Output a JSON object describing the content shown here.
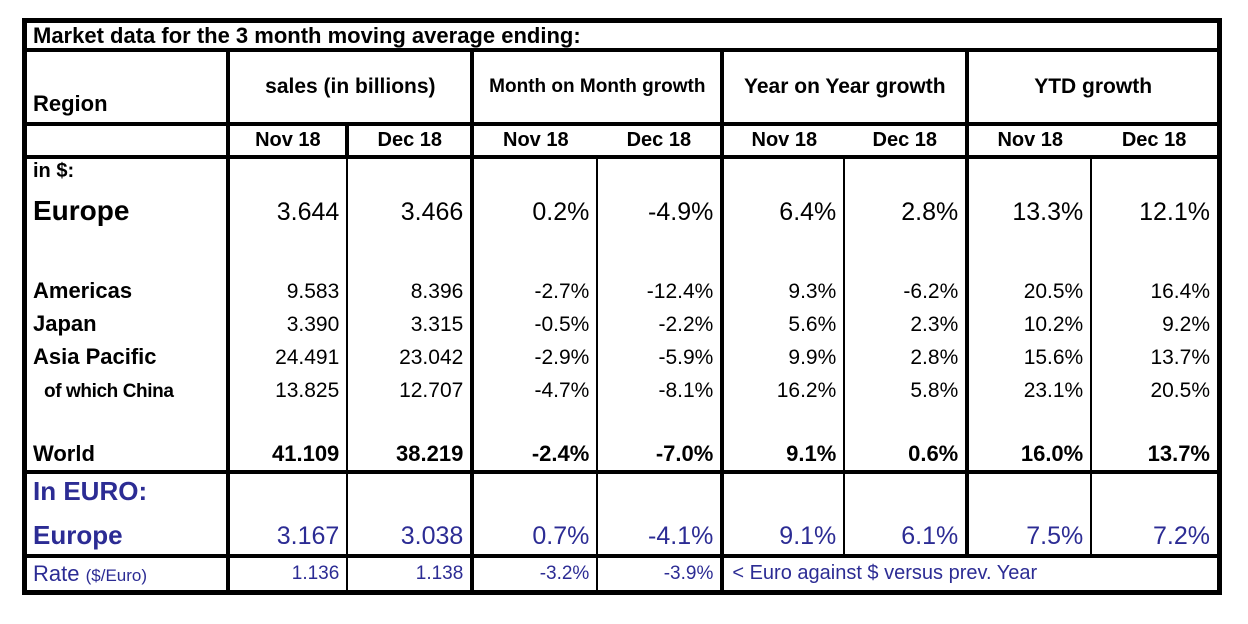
{
  "chart_data": {
    "type": "table",
    "title": "Market data for the 3 month moving average ending:",
    "header": {
      "region": "Region",
      "groups": [
        "sales (in billions)",
        "Month on Month growth",
        "Year on Year growth",
        "YTD growth"
      ]
    },
    "months": [
      "Nov 18",
      "Dec 18"
    ],
    "rows": [
      {
        "label": "in $:",
        "values": [
          "",
          "",
          "",
          "",
          "",
          "",
          "",
          ""
        ]
      },
      {
        "label": "Europe",
        "values": [
          "3.644",
          "3.466",
          "0.2%",
          "-4.9%",
          "6.4%",
          "2.8%",
          "13.3%",
          "12.1%"
        ]
      },
      {
        "label": "",
        "values": [
          "",
          "",
          "",
          "",
          "",
          "",
          "",
          ""
        ]
      },
      {
        "label": "Americas",
        "values": [
          "9.583",
          "8.396",
          "-2.7%",
          "-12.4%",
          "9.3%",
          "-6.2%",
          "20.5%",
          "16.4%"
        ]
      },
      {
        "label": "Japan",
        "values": [
          "3.390",
          "3.315",
          "-0.5%",
          "-2.2%",
          "5.6%",
          "2.3%",
          "10.2%",
          "9.2%"
        ]
      },
      {
        "label": "Asia Pacific",
        "values": [
          "24.491",
          "23.042",
          "-2.9%",
          "-5.9%",
          "9.9%",
          "2.8%",
          "15.6%",
          "13.7%"
        ]
      },
      {
        "label": "of which China",
        "values": [
          "13.825",
          "12.707",
          "-4.7%",
          "-8.1%",
          "16.2%",
          "5.8%",
          "23.1%",
          "20.5%"
        ]
      },
      {
        "label": "",
        "values": [
          "",
          "",
          "",
          "",
          "",
          "",
          "",
          ""
        ]
      },
      {
        "label": "World",
        "values": [
          "41.109",
          "38.219",
          "-2.4%",
          "-7.0%",
          "9.1%",
          "0.6%",
          "16.0%",
          "13.7%"
        ]
      }
    ],
    "euro_section": {
      "section_label": "In EURO:",
      "row": {
        "label": "Europe",
        "values": [
          "3.167",
          "3.038",
          "0.7%",
          "-4.1%",
          "9.1%",
          "6.1%",
          "7.5%",
          "7.2%"
        ]
      }
    },
    "rate_row": {
      "label": "Rate",
      "unit": "($/Euro)",
      "values": [
        "1.136",
        "1.138",
        "-3.2%",
        "-3.9%"
      ],
      "note": "< Euro against $ versus prev. Year"
    }
  },
  "colors": {
    "accent_blue": "#2c2c94",
    "border_black": "#000000"
  }
}
